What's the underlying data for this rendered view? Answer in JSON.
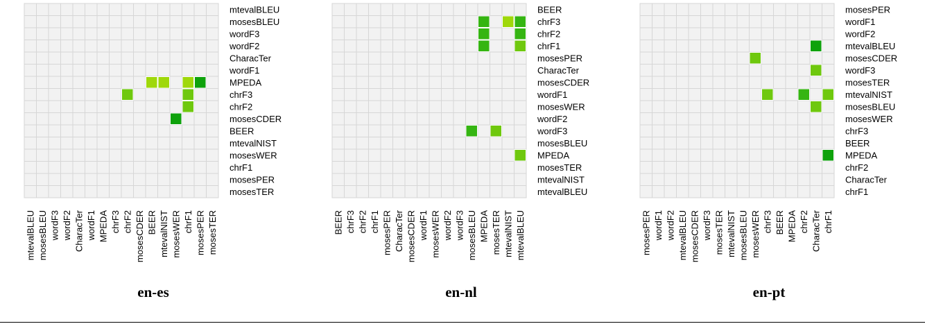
{
  "colors": {
    "cell_background": "#f2f2f2",
    "grid_line": "#d6d6d6",
    "significance_scale": [
      "#c9e500",
      "#9fd80a",
      "#6fc80e",
      "#35b512",
      "#0ea20c"
    ]
  },
  "chart_data": [
    {
      "type": "heatmap",
      "title": "en-es",
      "metrics": [
        "mtevalBLEU",
        "mosesBLEU",
        "wordF3",
        "wordF2",
        "CharacTer",
        "wordF1",
        "MPEDA",
        "chrF3",
        "chrF2",
        "mosesCDER",
        "BEER",
        "mtevalNIST",
        "mosesWER",
        "chrF1",
        "mosesPER",
        "mosesTER"
      ],
      "x_labels": [
        "mtevalBLEU",
        "mosesBLEU",
        "wordF3",
        "wordF2",
        "CharacTer",
        "wordF1",
        "MPEDA",
        "chrF3",
        "chrF2",
        "mosesCDER",
        "BEER",
        "mtevalNIST",
        "mosesWER",
        "chrF1",
        "mosesPER",
        "mosesTER"
      ],
      "grid": true,
      "cells": [
        {
          "row": "MPEDA",
          "col": "BEER",
          "level": 0.15
        },
        {
          "row": "MPEDA",
          "col": "mtevalNIST",
          "level": 0.3
        },
        {
          "row": "MPEDA",
          "col": "chrF1",
          "level": 0.15
        },
        {
          "row": "MPEDA",
          "col": "mosesPER",
          "level": 0.95
        },
        {
          "row": "chrF3",
          "col": "chrF2",
          "level": 0.4
        },
        {
          "row": "chrF3",
          "col": "chrF1",
          "level": 0.45
        },
        {
          "row": "chrF2",
          "col": "chrF1",
          "level": 0.45
        },
        {
          "row": "mosesCDER",
          "col": "mosesWER",
          "level": 1.0
        }
      ]
    },
    {
      "type": "heatmap",
      "title": "en-nl",
      "metrics": [
        "BEER",
        "chrF3",
        "chrF2",
        "chrF1",
        "mosesPER",
        "CharacTer",
        "mosesCDER",
        "wordF1",
        "mosesWER",
        "wordF2",
        "wordF3",
        "mosesBLEU",
        "MPEDA",
        "mosesTER",
        "mtevalNIST",
        "mtevalBLEU"
      ],
      "x_labels": [
        "BEER",
        "chrF3",
        "chrF2",
        "chrF1",
        "mosesPER",
        "CharacTer",
        "mosesCDER",
        "wordF1",
        "mosesWER",
        "wordF2",
        "wordF3",
        "mosesBLEU",
        "MPEDA",
        "mosesTER",
        "mtevalNIST",
        "mtevalBLEU"
      ],
      "grid": true,
      "cells": [
        {
          "row": "chrF3",
          "col": "MPEDA",
          "level": 0.75
        },
        {
          "row": "chrF3",
          "col": "mtevalNIST",
          "level": 0.3
        },
        {
          "row": "chrF3",
          "col": "mtevalBLEU",
          "level": 0.7
        },
        {
          "row": "chrF2",
          "col": "MPEDA",
          "level": 0.8
        },
        {
          "row": "chrF2",
          "col": "mtevalBLEU",
          "level": 0.7
        },
        {
          "row": "chrF1",
          "col": "MPEDA",
          "level": 0.75
        },
        {
          "row": "chrF1",
          "col": "mtevalBLEU",
          "level": 0.6
        },
        {
          "row": "wordF3",
          "col": "mosesBLEU",
          "level": 0.8
        },
        {
          "row": "wordF3",
          "col": "mosesTER",
          "level": 0.45
        },
        {
          "row": "MPEDA",
          "col": "mtevalBLEU",
          "level": 0.5
        }
      ]
    },
    {
      "type": "heatmap",
      "title": "en-pt",
      "metrics": [
        "mosesPER",
        "wordF1",
        "wordF2",
        "mtevalBLEU",
        "mosesCDER",
        "wordF3",
        "mosesTER",
        "mtevalNIST",
        "mosesBLEU",
        "mosesWER",
        "chrF3",
        "BEER",
        "MPEDA",
        "chrF2",
        "CharacTer",
        "chrF1"
      ],
      "x_labels": [
        "mosesPER",
        "wordF1",
        "wordF2",
        "mtevalBLEU",
        "mosesCDER",
        "wordF3",
        "mosesTER",
        "mtevalNIST",
        "mosesBLEU",
        "mosesWER",
        "chrF3",
        "BEER",
        "MPEDA",
        "chrF2",
        "CharacTer",
        "chrF1"
      ],
      "grid": true,
      "cells": [
        {
          "row": "mtevalBLEU",
          "col": "CharacTer",
          "level": 1.0
        },
        {
          "row": "mosesCDER",
          "col": "mosesWER",
          "level": 0.45
        },
        {
          "row": "wordF3",
          "col": "CharacTer",
          "level": 0.4
        },
        {
          "row": "mtevalNIST",
          "col": "chrF3",
          "level": 0.45
        },
        {
          "row": "mtevalNIST",
          "col": "chrF2",
          "level": 0.8
        },
        {
          "row": "mtevalNIST",
          "col": "chrF1",
          "level": 0.45
        },
        {
          "row": "mosesBLEU",
          "col": "CharacTer",
          "level": 0.4
        },
        {
          "row": "MPEDA",
          "col": "chrF1",
          "level": 1.0
        }
      ]
    }
  ]
}
